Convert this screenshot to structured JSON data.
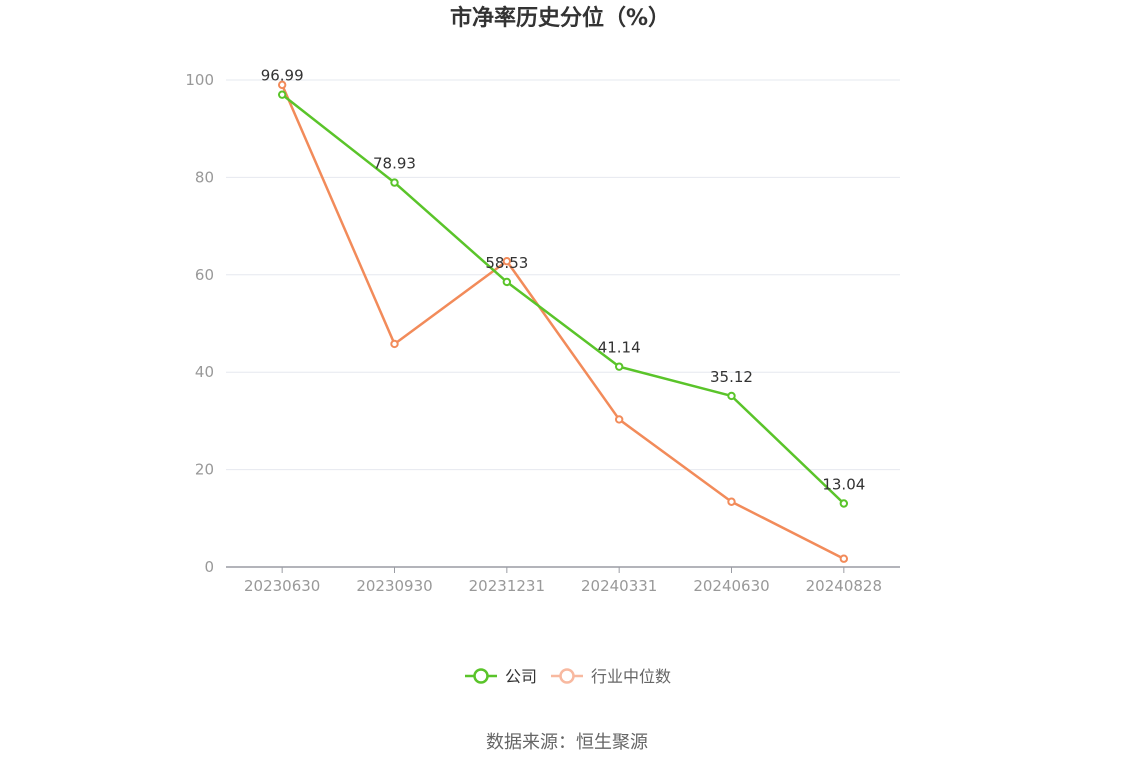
{
  "chart_data": {
    "type": "line",
    "title": "市净率历史分位（%）",
    "categories": [
      "20230630",
      "20230930",
      "20231231",
      "20240331",
      "20240630",
      "20240828"
    ],
    "y_ticks": [
      "0",
      "20",
      "40",
      "60",
      "80",
      "100"
    ],
    "ylim": [
      0,
      100
    ],
    "grid": true,
    "legend_position": "bottom-center",
    "series": [
      {
        "name": "公司",
        "color": "#5ac42a",
        "values": [
          96.99,
          78.93,
          58.53,
          41.14,
          35.12,
          13.04
        ],
        "data_labels": [
          "96.99",
          "78.93",
          "58.53",
          "41.14",
          "35.12",
          "13.04"
        ]
      },
      {
        "name": "行业中位数",
        "color": "#f28b5a",
        "legend_color": "#f8b9a0",
        "values": [
          99.0,
          45.8,
          62.8,
          30.3,
          13.4,
          1.7
        ]
      }
    ],
    "source": "数据来源：恒生聚源"
  }
}
